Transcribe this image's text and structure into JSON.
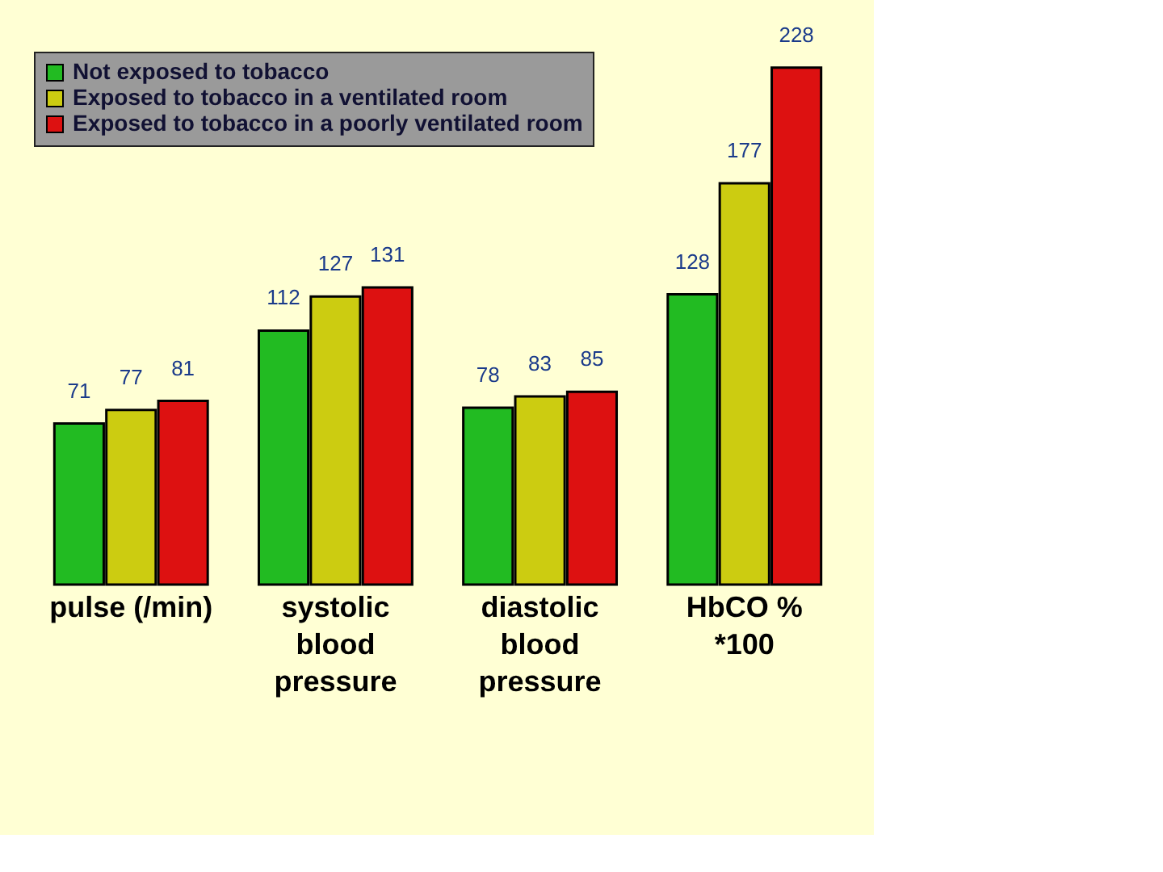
{
  "chart_data": {
    "type": "bar",
    "categories": [
      "pulse (/min)",
      "systolic\nblood\npressure",
      "diastolic\nblood\npressure",
      "HbCO %\n*100"
    ],
    "series": [
      {
        "name": "Not exposed to tobacco",
        "color": "#22bb22",
        "values": [
          71,
          112,
          78,
          128
        ]
      },
      {
        "name": "Exposed to tobacco in a ventilated room",
        "color": "#cccc11",
        "values": [
          77,
          127,
          83,
          177
        ]
      },
      {
        "name": "Exposed to tobacco in a poorly ventilated room",
        "color": "#dd1111",
        "values": [
          81,
          131,
          85,
          228
        ]
      }
    ],
    "ylim": [
      0,
      235
    ],
    "data_labels": true,
    "legend": "top left"
  }
}
